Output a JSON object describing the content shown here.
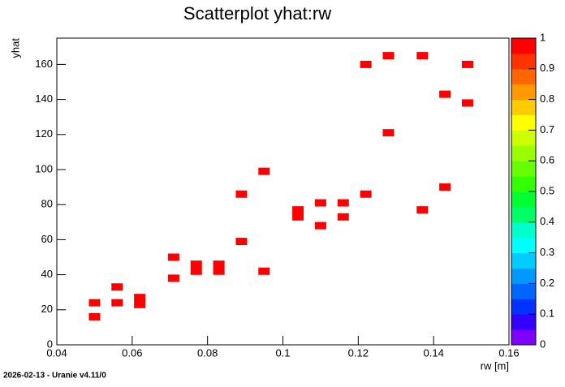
{
  "chart_data": {
    "type": "scatter",
    "title": "Scatterplot yhat:rw",
    "x_label": "rw [m]",
    "y_label": "yhat",
    "footer": "2026-02-13 - Uranie v4.11/0",
    "series": [
      {
        "color": "#ff0000",
        "x": [
          0.05,
          0.05,
          0.056,
          0.056,
          0.062,
          0.062,
          0.071,
          0.071,
          0.077,
          0.077,
          0.083,
          0.083,
          0.089,
          0.089,
          0.095,
          0.095,
          0.104,
          0.104,
          0.11,
          0.11,
          0.116,
          0.116,
          0.122,
          0.122,
          0.128,
          0.128,
          0.137,
          0.137,
          0.143,
          0.143,
          0.149,
          0.149
        ],
        "values": [
          16,
          24,
          24,
          33,
          23,
          27,
          38,
          50,
          42,
          46,
          42,
          46,
          86,
          59,
          99,
          42,
          73,
          77,
          81,
          68,
          81,
          73,
          160,
          86,
          165,
          121,
          165,
          77,
          143,
          90,
          160,
          138
        ]
      }
    ],
    "xlim": [
      0.04,
      0.16
    ],
    "xticks": [
      0.04,
      0.06,
      0.08,
      0.1,
      0.12,
      0.14,
      0.16
    ],
    "ylim": [
      0,
      175
    ],
    "yticks": [
      0,
      20,
      40,
      60,
      80,
      100,
      120,
      140,
      160
    ],
    "zlim": [
      0,
      1
    ],
    "zticks": [
      0,
      0.1,
      0.2,
      0.3,
      0.4,
      0.5,
      0.6,
      0.7,
      0.8,
      0.9,
      1
    ],
    "palette": [
      "#7f00ff",
      "#3300ff",
      "#0033ff",
      "#0066ff",
      "#0099ff",
      "#00ccff",
      "#00ffff",
      "#00ffcc",
      "#00ff66",
      "#00ff33",
      "#33ff00",
      "#66ff00",
      "#99ff00",
      "#ccff00",
      "#ffff00",
      "#ffcc00",
      "#ff9900",
      "#ff6600",
      "#ff3300",
      "#ff0000"
    ]
  }
}
